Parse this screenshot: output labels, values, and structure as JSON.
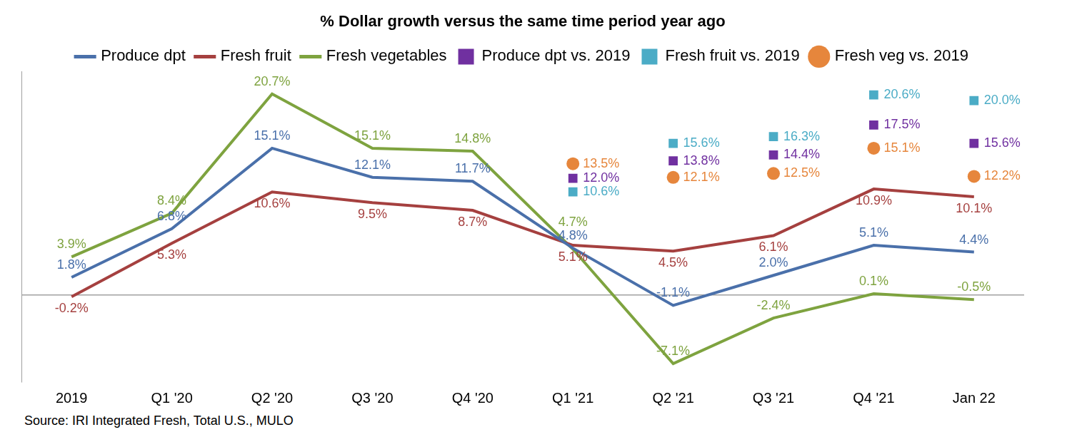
{
  "chart_data": {
    "type": "line",
    "title": "% Dollar growth versus the same time period year ago",
    "source": "Source: IRI Integrated Fresh, Total U.S., MULO",
    "categories": [
      "2019",
      "Q1 '20",
      "Q2 '20",
      "Q3 '20",
      "Q4 '20",
      "Q1 '21",
      "Q2 '21",
      "Q3 '21",
      "Q4 '21",
      "Jan 22"
    ],
    "ylim": [
      -9,
      23
    ],
    "yticks": [
      0
    ],
    "grid": true,
    "tick_labels": "x",
    "legend": "top",
    "data_labels": true,
    "series": [
      {
        "name": "Produce dpt",
        "type": "line",
        "color": "#4a70aa",
        "values": [
          1.8,
          6.8,
          15.1,
          12.1,
          11.7,
          4.8,
          -1.1,
          2.0,
          5.1,
          4.4
        ],
        "value_labels": [
          "1.8%",
          "6.8%",
          "15.1%",
          "12.1%",
          "11.7%",
          "4.8%",
          "-1.1%",
          "2.0%",
          "5.1%",
          "4.4%"
        ]
      },
      {
        "name": "Fresh fruit",
        "type": "line",
        "color": "#a5403f",
        "values": [
          -0.2,
          5.3,
          10.6,
          9.5,
          8.7,
          5.1,
          4.5,
          6.1,
          10.9,
          10.1
        ],
        "value_labels": [
          "-0.2%",
          "5.3%",
          "10.6%",
          "9.5%",
          "8.7%",
          "5.1%",
          "4.5%",
          "6.1%",
          "10.9%",
          "10.1%"
        ]
      },
      {
        "name": "Fresh vegetables",
        "type": "line",
        "color": "#7ea33f",
        "values": [
          3.9,
          8.4,
          20.7,
          15.1,
          14.8,
          4.7,
          -7.1,
          -2.4,
          0.1,
          -0.5
        ],
        "value_labels": [
          "3.9%",
          "8.4%",
          "20.7%",
          "15.1%",
          "14.8%",
          "4.7%",
          "-7.1%",
          "-2.4%",
          "0.1%",
          "-0.5%"
        ]
      },
      {
        "name": "Produce dpt vs. 2019",
        "type": "scatter",
        "marker": "square",
        "color": "#7030a0",
        "values": [
          null,
          null,
          null,
          null,
          null,
          12.0,
          13.8,
          14.4,
          17.5,
          15.6
        ],
        "value_labels": [
          null,
          null,
          null,
          null,
          null,
          "12.0%",
          "13.8%",
          "14.4%",
          "17.5%",
          "15.6%"
        ]
      },
      {
        "name": "Fresh fruit vs. 2019",
        "type": "scatter",
        "marker": "square",
        "color": "#4bacc6",
        "values": [
          null,
          null,
          null,
          null,
          null,
          10.6,
          15.6,
          16.3,
          20.6,
          20.0
        ],
        "value_labels": [
          null,
          null,
          null,
          null,
          null,
          "10.6%",
          "15.6%",
          "16.3%",
          "20.6%",
          "20.0%"
        ]
      },
      {
        "name": "Fresh veg vs. 2019",
        "type": "scatter",
        "marker": "circle",
        "color": "#e6863c",
        "values": [
          null,
          null,
          null,
          null,
          null,
          13.5,
          12.1,
          12.5,
          15.1,
          12.2
        ],
        "value_labels": [
          null,
          null,
          null,
          null,
          null,
          "13.5%",
          "12.1%",
          "12.5%",
          "15.1%",
          "12.2%"
        ]
      }
    ]
  }
}
